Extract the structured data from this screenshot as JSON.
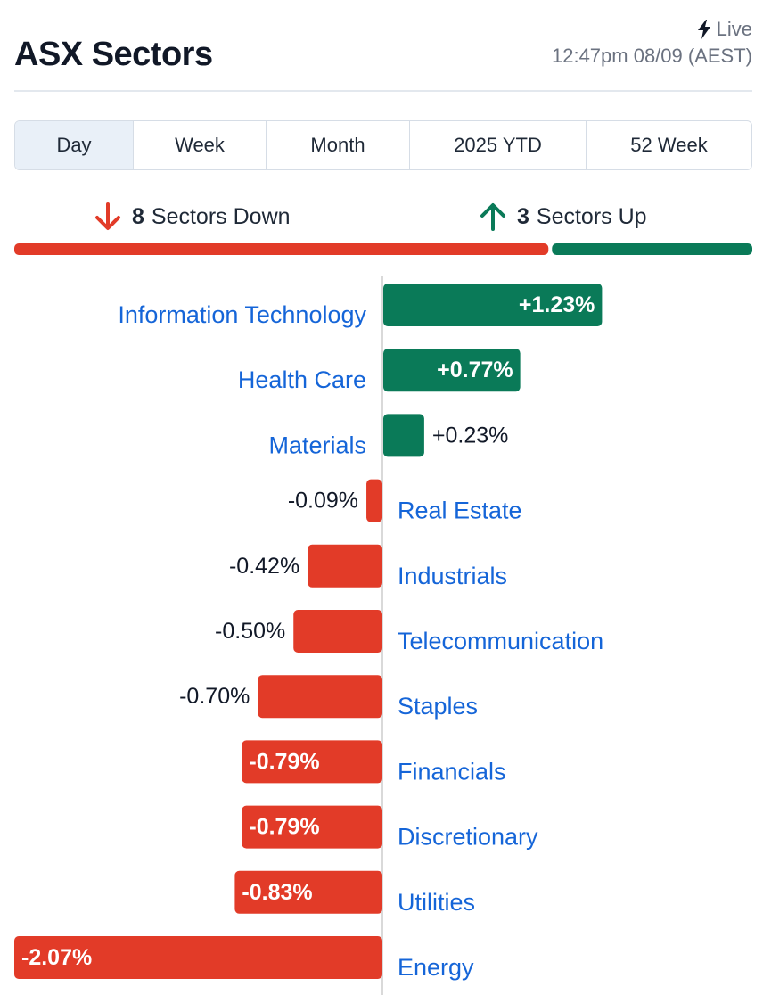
{
  "header": {
    "title": "ASX Sectors",
    "live_label": "Live",
    "timestamp": "12:47pm 08/09 (AEST)"
  },
  "tabs": [
    {
      "label": "Day",
      "active": true
    },
    {
      "label": "Week",
      "active": false
    },
    {
      "label": "Month",
      "active": false
    },
    {
      "label": "2025 YTD",
      "active": false
    },
    {
      "label": "52 Week",
      "active": false
    }
  ],
  "summary": {
    "down_count": "8",
    "down_label": "Sectors Down",
    "up_count": "3",
    "up_label": "Sectors Up"
  },
  "colors": {
    "up": "#0a7a58",
    "down": "#e23b28",
    "link": "#1565d8",
    "text": "#111827",
    "axis": "#d9d9d9"
  },
  "chart_data": {
    "type": "bar",
    "orientation": "horizontal",
    "categories": [
      "Information Technology",
      "Health Care",
      "Materials",
      "Real Estate",
      "Industrials",
      "Telecommunication",
      "Staples",
      "Financials",
      "Discretionary",
      "Utilities",
      "Energy"
    ],
    "values": [
      1.23,
      0.77,
      0.23,
      -0.09,
      -0.42,
      -0.5,
      -0.7,
      -0.79,
      -0.79,
      -0.83,
      -2.07
    ],
    "labels": [
      "+1.23%",
      "+0.77%",
      "+0.23%",
      "-0.09%",
      "-0.42%",
      "-0.50%",
      "-0.70%",
      "-0.79%",
      "-0.79%",
      "-0.83%",
      "-2.07%"
    ]
  }
}
